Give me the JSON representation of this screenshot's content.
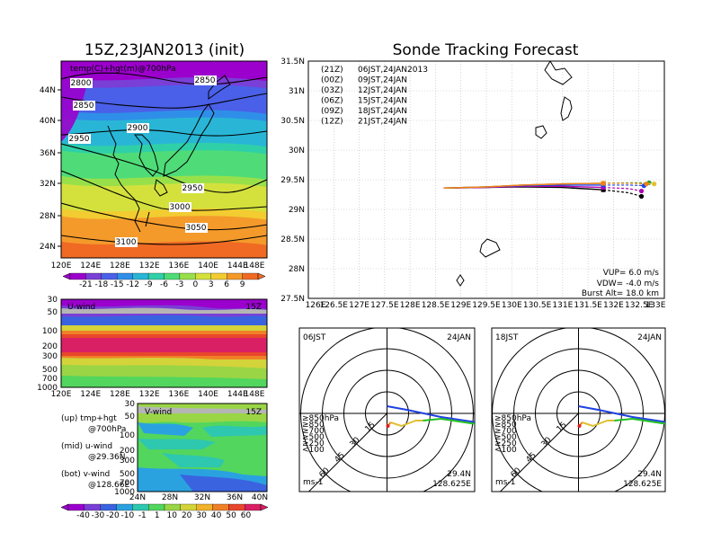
{
  "left_title": "15Z,23JAN2013 (init)",
  "main_title": "Sonde Tracking Forecast",
  "colors": {
    "temp_bands": [
      "#9b00cc",
      "#7a3fd6",
      "#4a60e8",
      "#2f8fe8",
      "#29b6d6",
      "#2fd0a8",
      "#4fdc78",
      "#98e04a",
      "#d4e13d",
      "#f2cc31",
      "#f49a2b",
      "#f06a24"
    ],
    "wind_bands": [
      "#9b00cc",
      "#7a3fd6",
      "#3a63e0",
      "#2aa2e0",
      "#2ec7b0",
      "#52d65e",
      "#9ad545",
      "#d3d33a",
      "#f1b32b",
      "#f08026",
      "#e8472b",
      "#d92064"
    ],
    "track_colors": [
      "#000000",
      "#b000b0",
      "#2046e0",
      "#20a020",
      "#e0c030",
      "#f08020"
    ]
  },
  "temp_map": {
    "label": "temp(C)+hgt(m)@700hPa",
    "lat_ticks": [
      "44N",
      "40N",
      "36N",
      "32N",
      "28N",
      "24N"
    ],
    "lon_ticks": [
      "120E",
      "124E",
      "128E",
      "132E",
      "136E",
      "140E",
      "144E",
      "148E"
    ],
    "contour_labels": [
      "2800",
      "2850",
      "2850",
      "2900",
      "2950",
      "2950",
      "3000",
      "3050",
      "3100"
    ],
    "colorbar_labels": [
      "-21",
      "-18",
      "-15",
      "-12",
      "-9",
      "-6",
      "-3",
      "0",
      "3",
      "6",
      "9"
    ]
  },
  "u_wind": {
    "label": "U-wind",
    "time": "15Z",
    "p_ticks": [
      "30",
      "50",
      "100",
      "200",
      "300",
      "500",
      "700",
      "1000"
    ],
    "lon_ticks": [
      "120E",
      "124E",
      "128E",
      "132E",
      "136E",
      "140E",
      "144E",
      "148E"
    ]
  },
  "v_wind": {
    "label": "V-wind",
    "time": "15Z",
    "p_ticks": [
      "30",
      "50",
      "100",
      "200",
      "300",
      "500",
      "700",
      "1000"
    ],
    "lat_ticks": [
      "24N",
      "28N",
      "32N",
      "36N",
      "40N"
    ],
    "colorbar_labels": [
      "-40",
      "-30",
      "-20",
      "-10",
      "-1",
      "1",
      "10",
      "20",
      "30",
      "40",
      "50",
      "60"
    ]
  },
  "legend_notes": [
    "(up) tmp+hgt",
    "@700hPa",
    "(mid) u-wind",
    "@29.36N",
    "(bot) v-wind",
    "@128.66E"
  ],
  "track_map": {
    "lat_ticks": [
      "31.5N",
      "31N",
      "30.5N",
      "30N",
      "29.5N",
      "29N",
      "28.5N",
      "28N",
      "27.5N"
    ],
    "lon_ticks": [
      "126E",
      "126.5E",
      "127E",
      "127.5E",
      "128E",
      "128.5E",
      "129E",
      "129.5E",
      "130E",
      "130.5E",
      "131E",
      "131.5E",
      "132E",
      "132.5E",
      "133E"
    ],
    "launches": [
      {
        "code": "(21Z)",
        "time": "06JST,24JAN2013"
      },
      {
        "code": "(00Z)",
        "time": "09JST,24JAN"
      },
      {
        "code": "(03Z)",
        "time": "12JST,24JAN"
      },
      {
        "code": "(06Z)",
        "time": "15JST,24JAN"
      },
      {
        "code": "(09Z)",
        "time": "18JST,24JAN"
      },
      {
        "code": "(12Z)",
        "time": "21JST,24JAN"
      }
    ],
    "params": [
      "VUP= 6.0 m/s",
      "VDW= -4.0 m/s",
      "Burst Alt= 18.0 km"
    ]
  },
  "chart_data": [
    {
      "type": "line",
      "title": "Sonde Tracking Forecast",
      "xlabel": "",
      "ylabel": "",
      "xlim": [
        126,
        133
      ],
      "ylim": [
        27.5,
        31.5
      ],
      "grid": true,
      "series": [
        {
          "name": "(21Z) 06JST,24JAN2013",
          "x": [
            128.66,
            129.5,
            130.2,
            131.0,
            131.8,
            132.3,
            132.55
          ],
          "y": [
            29.36,
            29.37,
            29.38,
            29.37,
            29.33,
            29.28,
            29.22
          ]
        },
        {
          "name": "(00Z) 09JST,24JAN",
          "x": [
            128.66,
            129.5,
            130.2,
            131.0,
            131.8,
            132.3,
            132.55
          ],
          "y": [
            29.36,
            29.37,
            29.39,
            29.39,
            29.37,
            29.35,
            29.31
          ]
        },
        {
          "name": "(03Z) 12JST,24JAN",
          "x": [
            128.66,
            129.5,
            130.2,
            131.0,
            131.8,
            132.3,
            132.6
          ],
          "y": [
            29.36,
            29.38,
            29.4,
            29.41,
            29.41,
            29.41,
            29.4
          ]
        },
        {
          "name": "(06Z) 15JST,24JAN",
          "x": [
            128.66,
            129.5,
            130.2,
            131.0,
            131.8,
            132.4,
            132.7
          ],
          "y": [
            29.36,
            29.38,
            29.41,
            29.43,
            29.44,
            29.45,
            29.45
          ]
        },
        {
          "name": "(09Z) 18JST,24JAN",
          "x": [
            128.66,
            129.5,
            130.2,
            131.0,
            131.8,
            132.5,
            132.8
          ],
          "y": [
            29.36,
            29.38,
            29.41,
            29.43,
            29.44,
            29.44,
            29.43
          ]
        },
        {
          "name": "(12Z) 21JST,24JAN",
          "x": [
            128.66,
            129.5,
            130.2,
            131.0,
            131.8,
            132.4,
            132.65
          ],
          "y": [
            29.36,
            29.38,
            29.41,
            29.43,
            29.44,
            29.44,
            29.43
          ]
        }
      ]
    },
    {
      "type": "line",
      "title": "06JST 24JAN",
      "xlabel": "",
      "ylabel": "",
      "series": []
    },
    {
      "type": "line",
      "title": "18JST 24JAN",
      "xlabel": "",
      "ylabel": "",
      "series": []
    }
  ],
  "hodo": [
    {
      "time": "06JST",
      "date": "24JAN",
      "lat": "29.4N",
      "lon": "128.625E",
      "unit": "ms-1",
      "ring_labels": [
        "15",
        "30",
        "45",
        "60"
      ],
      "legend": [
        "≥850hPa",
        "≥850",
        "≥700",
        "≥500",
        "≥250",
        "<100"
      ]
    },
    {
      "time": "18JST",
      "date": "24JAN",
      "lat": "29.4N",
      "lon": "128.625E",
      "unit": "ms-1",
      "ring_labels": [
        "15",
        "30",
        "45",
        "60"
      ],
      "legend": [
        "≥850hPa",
        "≥850",
        "≥700",
        "≥500",
        "≥250",
        "<100"
      ]
    }
  ],
  "legend_colors": [
    "#e02020",
    "#f08020",
    "#e0c030",
    "#20c020",
    "#20b0e0",
    "#2040e0"
  ]
}
